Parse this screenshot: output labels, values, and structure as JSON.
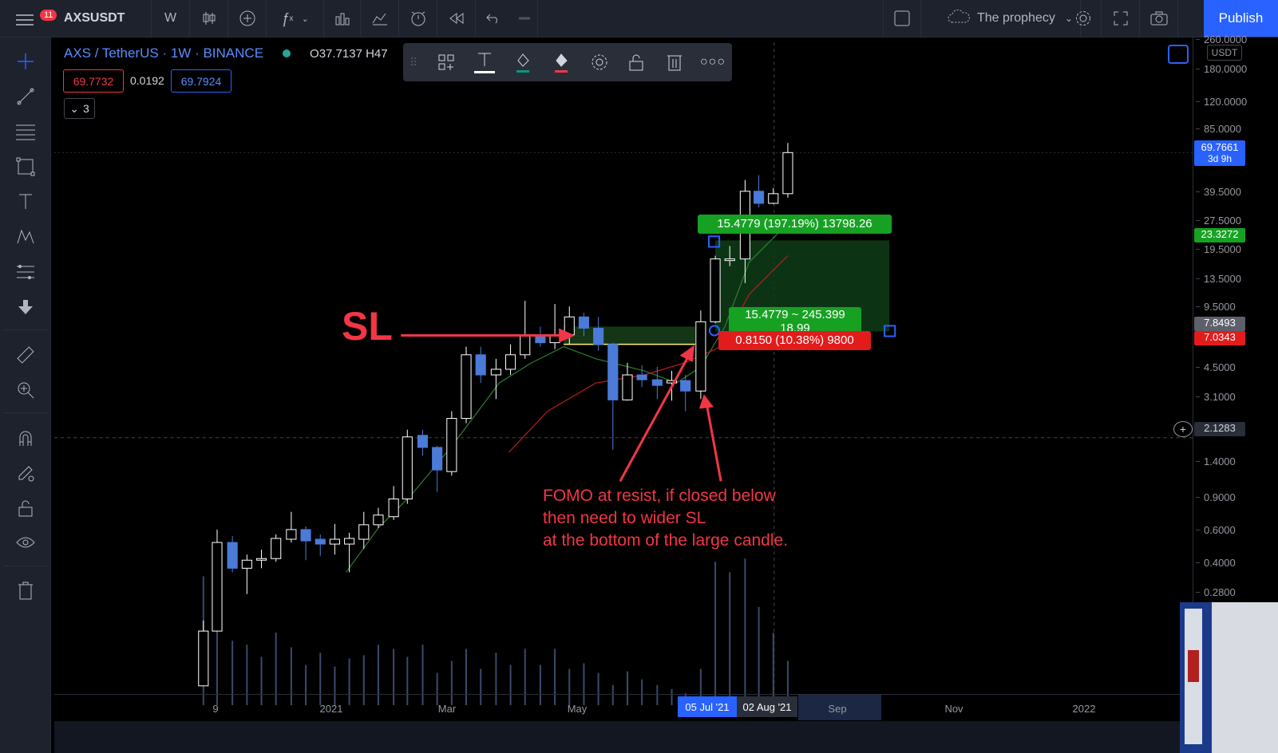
{
  "header": {
    "notification_count": "11",
    "symbol": "AXSUSDT",
    "interval": "W",
    "layout_name": "The prophecy",
    "publish_label": "Publish"
  },
  "legend": {
    "title": "AXS / TetherUS · 1W · BINANCE",
    "ohlc_partial": "O37.7137  H47",
    "sell_price": "69.7732",
    "spread": "0.0192",
    "buy_price": "69.7924",
    "collapse_count": "3"
  },
  "price_axis": {
    "currency": "USDT",
    "ticks": [
      "260.0000",
      "180.0000",
      "120.0000",
      "85.0000",
      "39.5000",
      "27.5000",
      "19.5000",
      "13.5000",
      "9.5000",
      "4.5000",
      "3.1000",
      "1.4000",
      "0.9000",
      "0.6000",
      "0.4000",
      "0.2800"
    ],
    "current_price": "69.7661",
    "countdown": "3d 9h",
    "target_label": "23.3272",
    "entry_label": "7.8493",
    "stop_label": "7.0343",
    "crosshair_price": "2.1283"
  },
  "time_axis": {
    "ticks": [
      "9",
      "2021",
      "Mar",
      "May",
      "Sep",
      "Nov",
      "2022"
    ],
    "highlight_start": "05 Jul '21",
    "highlight_end": "02 Aug '21"
  },
  "position_tool": {
    "target_text": "15.4779 (197.19%) 13798.26",
    "ratio_text": "15.4779 ~ 245.399",
    "ratio_sub": "18.99",
    "stop_text": "0.8150 (10.38%) 9800"
  },
  "annotations": {
    "sl": "SL",
    "fomo_lines": [
      "FOMO at resist, if closed below",
      "then need to wider SL",
      "at the bottom of the large candle."
    ]
  },
  "colors": {
    "bull": "#ffffff",
    "bear": "#4a7bd8",
    "annotation": "#f23645",
    "profit": "#089981",
    "loss": "#f23645"
  }
}
